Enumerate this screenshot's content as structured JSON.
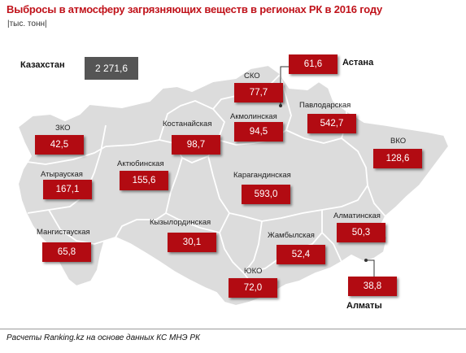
{
  "title": "Выбросы в атмосферу загрязняющих веществ в регионах РК в 2016 году",
  "unit": "|тыс. тонн|",
  "source": "Расчеты Ranking.kz на основе данных КС МНЭ РК",
  "colors": {
    "title": "#c0121a",
    "region_box": "#b20b12",
    "total_box": "#555555",
    "map_fill": "#dcdcdc",
    "map_border": "#ffffff"
  },
  "total": {
    "label": "Казахстан",
    "value": "2 271,6"
  },
  "regions": {
    "sko": {
      "name": "СКО",
      "value": "77,7"
    },
    "astana": {
      "name": "Астана",
      "value": "61,6"
    },
    "zko": {
      "name": "ЗКО",
      "value": "42,5"
    },
    "kostanay": {
      "name": "Костанайская",
      "value": "98,7"
    },
    "akmola": {
      "name": "Акмолинская",
      "value": "94,5"
    },
    "pavlodar": {
      "name": "Павлодарская",
      "value": "542,7"
    },
    "vko": {
      "name": "ВКО",
      "value": "128,6"
    },
    "aktobe": {
      "name": "Актюбинская",
      "value": "155,6"
    },
    "atyrau": {
      "name": "Атырауская",
      "value": "167,1"
    },
    "karaganda": {
      "name": "Карагандинская",
      "value": "593,0"
    },
    "kyzylorda": {
      "name": "Кызылординская",
      "value": "30,1"
    },
    "almaty_region": {
      "name": "Алматинская",
      "value": "50,3"
    },
    "mangystau": {
      "name": "Мангистауская",
      "value": "65,8"
    },
    "zhambyl": {
      "name": "Жамбылская",
      "value": "52,4"
    },
    "yuko": {
      "name": "ЮКО",
      "value": "72,0"
    },
    "almaty_city": {
      "name": "Алматы",
      "value": "38,8"
    }
  }
}
